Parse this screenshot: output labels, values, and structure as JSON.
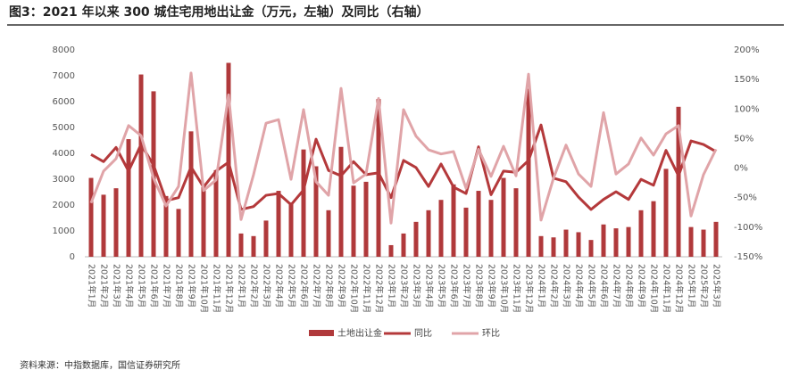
{
  "chart_data": {
    "type": "combo",
    "title": "图3：2021 年以来 300 城住宅用地出让金（万元，左轴）及同比（右轴）",
    "source": "资料来源：中指数据库，国信证券研究所",
    "categories": [
      "2021年1月",
      "2021年2月",
      "2021年3月",
      "2021年4月",
      "2021年5月",
      "2021年6月",
      "2021年7月",
      "2021年8月",
      "2021年9月",
      "2021年10月",
      "2021年11月",
      "2021年12月",
      "2022年1月",
      "2022年2月",
      "2022年3月",
      "2022年4月",
      "2022年5月",
      "2022年6月",
      "2022年7月",
      "2022年8月",
      "2022年9月",
      "2022年10月",
      "2022年11月",
      "2022年12月",
      "2023年1月",
      "2023年2月",
      "2023年3月",
      "2023年4月",
      "2023年5月",
      "2023年6月",
      "2023年7月",
      "2023年8月",
      "2023年9月",
      "2023年10月",
      "2023年11月",
      "2023年12月",
      "2024年1月",
      "2024年2月",
      "2024年3月",
      "2024年4月",
      "2024年5月",
      "2024年6月",
      "2024年7月",
      "2024年8月",
      "2024年9月",
      "2024年10月",
      "2024年11月",
      "2024年12月",
      "2025年1月",
      "2025年2月",
      "2025年3月"
    ],
    "series": [
      {
        "name": "土地出让金",
        "type": "bar",
        "color": "#b0393b",
        "values": [
          3050,
          2400,
          2650,
          4550,
          7050,
          6400,
          2350,
          1850,
          4850,
          2700,
          3350,
          7500,
          900,
          800,
          1400,
          2550,
          2100,
          4150,
          3500,
          1800,
          4250,
          2750,
          2900,
          6100,
          450,
          900,
          1350,
          1800,
          2200,
          2800,
          1900,
          2550,
          2200,
          3050,
          2650,
          6500,
          800,
          750,
          1050,
          950,
          650,
          1250,
          1100,
          1150,
          1800,
          2150,
          3400,
          5800,
          1150,
          1050,
          1350
        ]
      },
      {
        "name": "同比",
        "type": "line",
        "axis": "y2",
        "color": "#b4393b",
        "values": [
          23,
          11,
          35,
          -5,
          40,
          5,
          -55,
          -50,
          2,
          -32,
          -5,
          10,
          -70,
          -65,
          -46,
          -43,
          -62,
          -37,
          49,
          -4,
          -13,
          11,
          -11,
          -8,
          -50,
          13,
          1,
          -31,
          7,
          -32,
          -43,
          36,
          -45,
          -5,
          -7,
          13,
          73,
          -17,
          -23,
          -49,
          -70,
          -53,
          -40,
          -53,
          -19,
          -29,
          30,
          -13,
          46,
          40,
          28
        ]
      },
      {
        "name": "环比",
        "type": "line",
        "axis": "y2",
        "color": "#e0a4a8",
        "values": [
          -59,
          -5,
          16,
          72,
          55,
          -17,
          -64,
          -31,
          161,
          -38,
          -20,
          124,
          -87,
          -11,
          76,
          82,
          -19,
          99,
          -23,
          -46,
          135,
          -25,
          -10,
          118,
          -93,
          99,
          54,
          31,
          24,
          28,
          -34,
          32,
          -14,
          37,
          -13,
          159,
          -88,
          -17,
          39,
          -10,
          -31,
          94,
          -10,
          7,
          51,
          22,
          58,
          72,
          -81,
          -11,
          32
        ]
      }
    ],
    "ylim": [
      0,
      8000
    ],
    "yticks": [
      0,
      1000,
      2000,
      3000,
      4000,
      5000,
      6000,
      7000,
      8000
    ],
    "y2lim": [
      -150,
      200
    ],
    "y2ticks": [
      {
        "value": -150,
        "label": "-150%"
      },
      {
        "value": -100,
        "label": "-100%"
      },
      {
        "value": -50,
        "label": "-50%"
      },
      {
        "value": 0,
        "label": "0%"
      },
      {
        "value": 50,
        "label": "50%"
      },
      {
        "value": 100,
        "label": "100%"
      },
      {
        "value": 150,
        "label": "150%"
      },
      {
        "value": 200,
        "label": "200%"
      }
    ],
    "grid": false
  }
}
